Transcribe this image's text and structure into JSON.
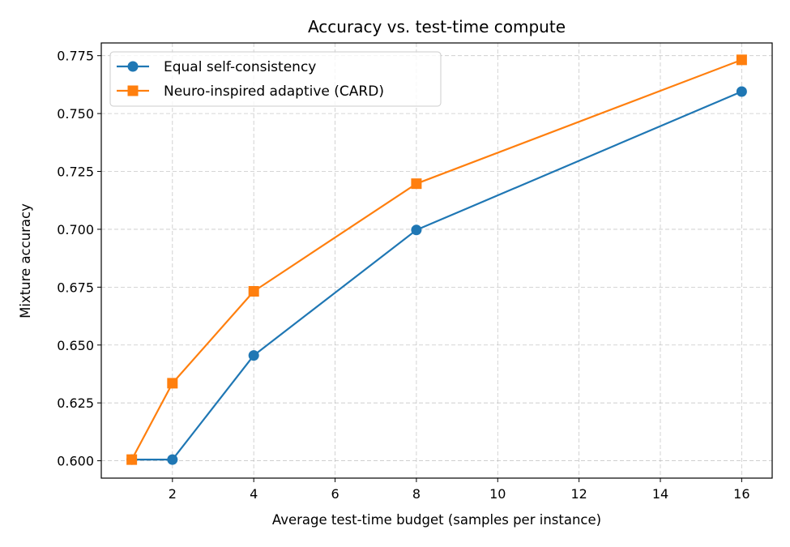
{
  "chart_data": {
    "type": "line",
    "title": "Accuracy vs. test-time compute",
    "xlabel": "Average test-time budget (samples per instance)",
    "ylabel": "Mixture accuracy",
    "xlim": [
      0.25,
      16.75
    ],
    "ylim": [
      0.5925,
      0.7805
    ],
    "xticks": [
      2,
      4,
      6,
      8,
      10,
      12,
      14,
      16
    ],
    "xtick_labels": [
      "2",
      "4",
      "6",
      "8",
      "10",
      "12",
      "14",
      "16"
    ],
    "yticks": [
      0.6,
      0.625,
      0.65,
      0.675,
      0.7,
      0.725,
      0.75,
      0.775
    ],
    "ytick_labels": [
      "0.600",
      "0.625",
      "0.650",
      "0.675",
      "0.700",
      "0.725",
      "0.750",
      "0.775"
    ],
    "grid": true,
    "grid_style": "dashed",
    "legend_position": "top-left",
    "series": [
      {
        "name": "Equal self-consistency",
        "color": "#1f77b4",
        "marker": "circle",
        "x": [
          1,
          2,
          4,
          8,
          16
        ],
        "y": [
          0.6005,
          0.6005,
          0.6455,
          0.6997,
          0.7595
        ]
      },
      {
        "name": "Neuro-inspired adaptive (CARD)",
        "color": "#ff7f0e",
        "marker": "square",
        "x": [
          1,
          2,
          4,
          8,
          16
        ],
        "y": [
          0.6005,
          0.6335,
          0.6732,
          0.7197,
          0.7732
        ]
      }
    ]
  }
}
